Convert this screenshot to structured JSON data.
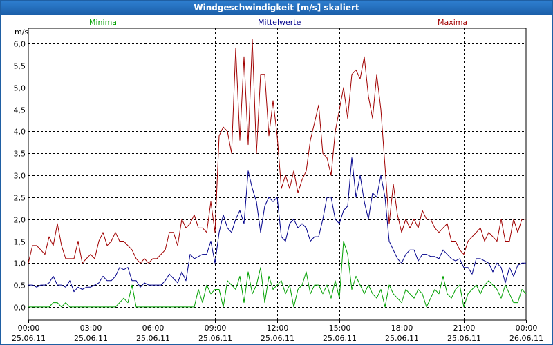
{
  "chart_data": {
    "type": "line",
    "title": "Windgeschwindigkeit [m/s] skaliert",
    "ylabel": "m/s",
    "ylim": [
      -0.3,
      6.35
    ],
    "yticks": [
      0.0,
      0.5,
      1.0,
      1.5,
      2.0,
      2.5,
      3.0,
      3.5,
      4.0,
      4.5,
      5.0,
      5.5,
      6.0
    ],
    "ytick_labels": [
      "0,0",
      "0,5",
      "1,0",
      "1,5",
      "2,0",
      "2,5",
      "3,0",
      "3,5",
      "4,0",
      "4,5",
      "5,0",
      "5,5",
      "6,0"
    ],
    "xlim": [
      0,
      24
    ],
    "xticks": [
      0,
      3,
      6,
      9,
      12,
      15,
      18,
      21,
      24
    ],
    "xtick_time_labels": [
      "00:00",
      "03:00",
      "06:00",
      "09:00",
      "12:00",
      "15:00",
      "18:00",
      "21:00",
      "00:00"
    ],
    "xtick_date_labels": [
      "25.06.11",
      "25.06.11",
      "25.06.11",
      "25.06.11",
      "25.06.11",
      "25.06.11",
      "25.06.11",
      "25.06.11",
      "26.06.11"
    ],
    "grid": true,
    "series": [
      {
        "name": "Maxima",
        "color": "#a00000",
        "x": [
          0.0,
          0.2,
          0.4,
          0.6,
          0.8,
          1.0,
          1.2,
          1.4,
          1.6,
          1.8,
          2.0,
          2.2,
          2.4,
          2.6,
          2.8,
          3.0,
          3.2,
          3.4,
          3.6,
          3.8,
          4.0,
          4.2,
          4.4,
          4.6,
          4.8,
          5.0,
          5.2,
          5.4,
          5.6,
          5.8,
          6.0,
          6.2,
          6.4,
          6.6,
          6.8,
          7.0,
          7.2,
          7.4,
          7.6,
          7.8,
          8.0,
          8.2,
          8.4,
          8.6,
          8.8,
          9.0,
          9.2,
          9.4,
          9.6,
          9.8,
          10.0,
          10.2,
          10.4,
          10.6,
          10.8,
          11.0,
          11.2,
          11.4,
          11.6,
          11.8,
          12.0,
          12.2,
          12.4,
          12.6,
          12.8,
          13.0,
          13.2,
          13.4,
          13.6,
          13.8,
          14.0,
          14.2,
          14.4,
          14.6,
          14.8,
          15.0,
          15.2,
          15.4,
          15.6,
          15.8,
          16.0,
          16.2,
          16.4,
          16.6,
          16.8,
          17.0,
          17.2,
          17.4,
          17.6,
          17.8,
          18.0,
          18.2,
          18.4,
          18.6,
          18.8,
          19.0,
          19.2,
          19.4,
          19.6,
          19.8,
          20.0,
          20.2,
          20.4,
          20.6,
          20.8,
          21.0,
          21.2,
          21.4,
          21.6,
          21.8,
          22.0,
          22.2,
          22.4,
          22.6,
          22.8,
          23.0,
          23.2,
          23.4,
          23.6,
          23.8,
          24.0
        ],
        "values": [
          1.0,
          1.4,
          1.4,
          1.3,
          1.2,
          1.6,
          1.4,
          1.9,
          1.4,
          1.1,
          1.1,
          1.1,
          1.5,
          1.0,
          1.1,
          1.2,
          1.1,
          1.5,
          1.7,
          1.4,
          1.5,
          1.7,
          1.5,
          1.5,
          1.4,
          1.3,
          1.1,
          1.0,
          1.1,
          1.0,
          1.1,
          1.1,
          1.2,
          1.3,
          1.7,
          1.7,
          1.4,
          2.0,
          1.8,
          1.9,
          2.1,
          1.8,
          1.8,
          1.7,
          2.4,
          1.7,
          3.9,
          4.1,
          4.0,
          3.5,
          5.9,
          3.8,
          5.7,
          3.7,
          6.1,
          3.5,
          5.3,
          5.3,
          3.9,
          4.7,
          3.9,
          2.7,
          3.0,
          2.7,
          3.1,
          2.6,
          2.9,
          3.1,
          3.8,
          4.2,
          4.6,
          3.5,
          3.4,
          3.0,
          4.0,
          4.5,
          5.0,
          4.3,
          5.3,
          5.4,
          5.2,
          5.7,
          4.8,
          4.3,
          5.3,
          4.5,
          3.2,
          1.9,
          2.8,
          2.1,
          1.7,
          2.0,
          1.8,
          2.0,
          1.8,
          2.2,
          2.0,
          2.0,
          1.8,
          1.7,
          1.8,
          1.9,
          1.5,
          1.5,
          1.3,
          1.2,
          1.5,
          1.6,
          1.7,
          1.8,
          1.5,
          1.7,
          1.6,
          1.5,
          2.0,
          1.5,
          1.5,
          2.0,
          1.7,
          2.0,
          2.0
        ]
      },
      {
        "name": "Mittelwerte",
        "color": "#00008b",
        "x": [
          0.0,
          0.2,
          0.4,
          0.6,
          0.8,
          1.0,
          1.2,
          1.4,
          1.6,
          1.8,
          2.0,
          2.2,
          2.4,
          2.6,
          2.8,
          3.0,
          3.2,
          3.4,
          3.6,
          3.8,
          4.0,
          4.2,
          4.4,
          4.6,
          4.8,
          5.0,
          5.2,
          5.4,
          5.6,
          5.8,
          6.0,
          6.2,
          6.4,
          6.6,
          6.8,
          7.0,
          7.2,
          7.4,
          7.6,
          7.8,
          8.0,
          8.2,
          8.4,
          8.6,
          8.8,
          9.0,
          9.2,
          9.4,
          9.6,
          9.8,
          10.0,
          10.2,
          10.4,
          10.6,
          10.8,
          11.0,
          11.2,
          11.4,
          11.6,
          11.8,
          12.0,
          12.2,
          12.4,
          12.6,
          12.8,
          13.0,
          13.2,
          13.4,
          13.6,
          13.8,
          14.0,
          14.2,
          14.4,
          14.6,
          14.8,
          15.0,
          15.2,
          15.4,
          15.6,
          15.8,
          16.0,
          16.2,
          16.4,
          16.6,
          16.8,
          17.0,
          17.2,
          17.4,
          17.6,
          17.8,
          18.0,
          18.2,
          18.4,
          18.6,
          18.8,
          19.0,
          19.2,
          19.4,
          19.6,
          19.8,
          20.0,
          20.2,
          20.4,
          20.6,
          20.8,
          21.0,
          21.2,
          21.4,
          21.6,
          21.8,
          22.0,
          22.2,
          22.4,
          22.6,
          22.8,
          23.0,
          23.2,
          23.4,
          23.6,
          23.8,
          24.0
        ],
        "values": [
          0.5,
          0.5,
          0.45,
          0.5,
          0.5,
          0.55,
          0.7,
          0.5,
          0.5,
          0.45,
          0.6,
          0.35,
          0.45,
          0.4,
          0.45,
          0.45,
          0.5,
          0.55,
          0.7,
          0.6,
          0.6,
          0.7,
          0.9,
          0.85,
          0.9,
          0.6,
          0.6,
          0.45,
          0.55,
          0.5,
          0.5,
          0.5,
          0.5,
          0.6,
          0.75,
          0.65,
          0.55,
          0.8,
          0.6,
          1.2,
          1.1,
          1.15,
          1.2,
          1.2,
          1.5,
          1.0,
          1.7,
          2.1,
          1.8,
          1.7,
          2.0,
          2.2,
          1.9,
          3.1,
          2.7,
          2.4,
          1.7,
          2.3,
          2.5,
          2.4,
          2.5,
          1.6,
          1.5,
          1.9,
          2.0,
          1.8,
          1.9,
          1.8,
          1.5,
          1.6,
          1.6,
          2.0,
          2.5,
          2.5,
          2.0,
          1.9,
          2.2,
          2.3,
          3.4,
          2.5,
          3.0,
          2.4,
          2.0,
          2.6,
          2.5,
          3.0,
          2.5,
          1.5,
          1.3,
          1.1,
          1.0,
          1.2,
          1.3,
          1.3,
          1.05,
          1.2,
          1.2,
          1.15,
          1.15,
          1.1,
          1.3,
          1.2,
          1.1,
          1.05,
          1.1,
          0.9,
          0.9,
          0.75,
          1.1,
          1.1,
          1.05,
          1.0,
          0.8,
          1.0,
          0.9,
          0.55,
          0.9,
          0.7,
          0.95,
          1.0,
          1.0
        ]
      },
      {
        "name": "Minima",
        "color": "#00a000",
        "x": [
          0.0,
          0.2,
          0.4,
          0.6,
          0.8,
          1.0,
          1.2,
          1.4,
          1.6,
          1.8,
          2.0,
          2.2,
          2.4,
          2.6,
          2.8,
          3.0,
          3.2,
          3.4,
          3.6,
          3.8,
          4.0,
          4.2,
          4.4,
          4.6,
          4.8,
          5.0,
          5.2,
          5.4,
          5.6,
          5.8,
          6.0,
          6.2,
          6.4,
          6.6,
          6.8,
          7.0,
          7.2,
          7.4,
          7.6,
          7.8,
          8.0,
          8.2,
          8.4,
          8.6,
          8.8,
          9.0,
          9.2,
          9.4,
          9.6,
          9.8,
          10.0,
          10.2,
          10.4,
          10.6,
          10.8,
          11.0,
          11.2,
          11.4,
          11.6,
          11.8,
          12.0,
          12.2,
          12.4,
          12.6,
          12.8,
          13.0,
          13.2,
          13.4,
          13.6,
          13.8,
          14.0,
          14.2,
          14.4,
          14.6,
          14.8,
          15.0,
          15.2,
          15.4,
          15.6,
          15.8,
          16.0,
          16.2,
          16.4,
          16.6,
          16.8,
          17.0,
          17.2,
          17.4,
          17.6,
          17.8,
          18.0,
          18.2,
          18.4,
          18.6,
          18.8,
          19.0,
          19.2,
          19.4,
          19.6,
          19.8,
          20.0,
          20.2,
          20.4,
          20.6,
          20.8,
          21.0,
          21.2,
          21.4,
          21.6,
          21.8,
          22.0,
          22.2,
          22.4,
          22.6,
          22.8,
          23.0,
          23.2,
          23.4,
          23.6,
          23.8,
          24.0
        ],
        "values": [
          0.0,
          0.0,
          0.0,
          0.0,
          0.0,
          0.0,
          0.1,
          0.1,
          0.0,
          0.1,
          0.0,
          0.0,
          0.0,
          0.0,
          0.0,
          0.0,
          0.0,
          0.0,
          0.0,
          0.0,
          0.0,
          0.0,
          0.1,
          0.2,
          0.1,
          0.5,
          0.0,
          0.0,
          0.0,
          0.0,
          0.0,
          0.0,
          0.0,
          0.0,
          0.0,
          0.0,
          0.0,
          0.0,
          0.0,
          0.0,
          0.0,
          0.4,
          0.1,
          0.5,
          0.3,
          0.4,
          0.4,
          0.0,
          0.6,
          0.5,
          0.4,
          0.7,
          0.1,
          0.8,
          0.3,
          0.5,
          0.9,
          0.1,
          0.7,
          0.4,
          0.5,
          0.6,
          0.3,
          0.5,
          0.0,
          0.4,
          0.5,
          0.8,
          0.3,
          0.5,
          0.5,
          0.3,
          0.5,
          0.2,
          0.6,
          0.2,
          1.5,
          1.2,
          0.4,
          0.7,
          0.5,
          0.3,
          0.5,
          0.3,
          0.2,
          0.4,
          0.0,
          0.5,
          0.3,
          0.2,
          0.1,
          0.4,
          0.3,
          0.2,
          0.4,
          0.3,
          0.0,
          0.2,
          0.4,
          0.3,
          0.7,
          0.3,
          0.2,
          0.4,
          0.5,
          0.0,
          0.3,
          0.4,
          0.5,
          0.3,
          0.5,
          0.6,
          0.5,
          0.4,
          0.2,
          0.5,
          0.3,
          0.1,
          0.1,
          0.4,
          0.3
        ]
      }
    ]
  }
}
